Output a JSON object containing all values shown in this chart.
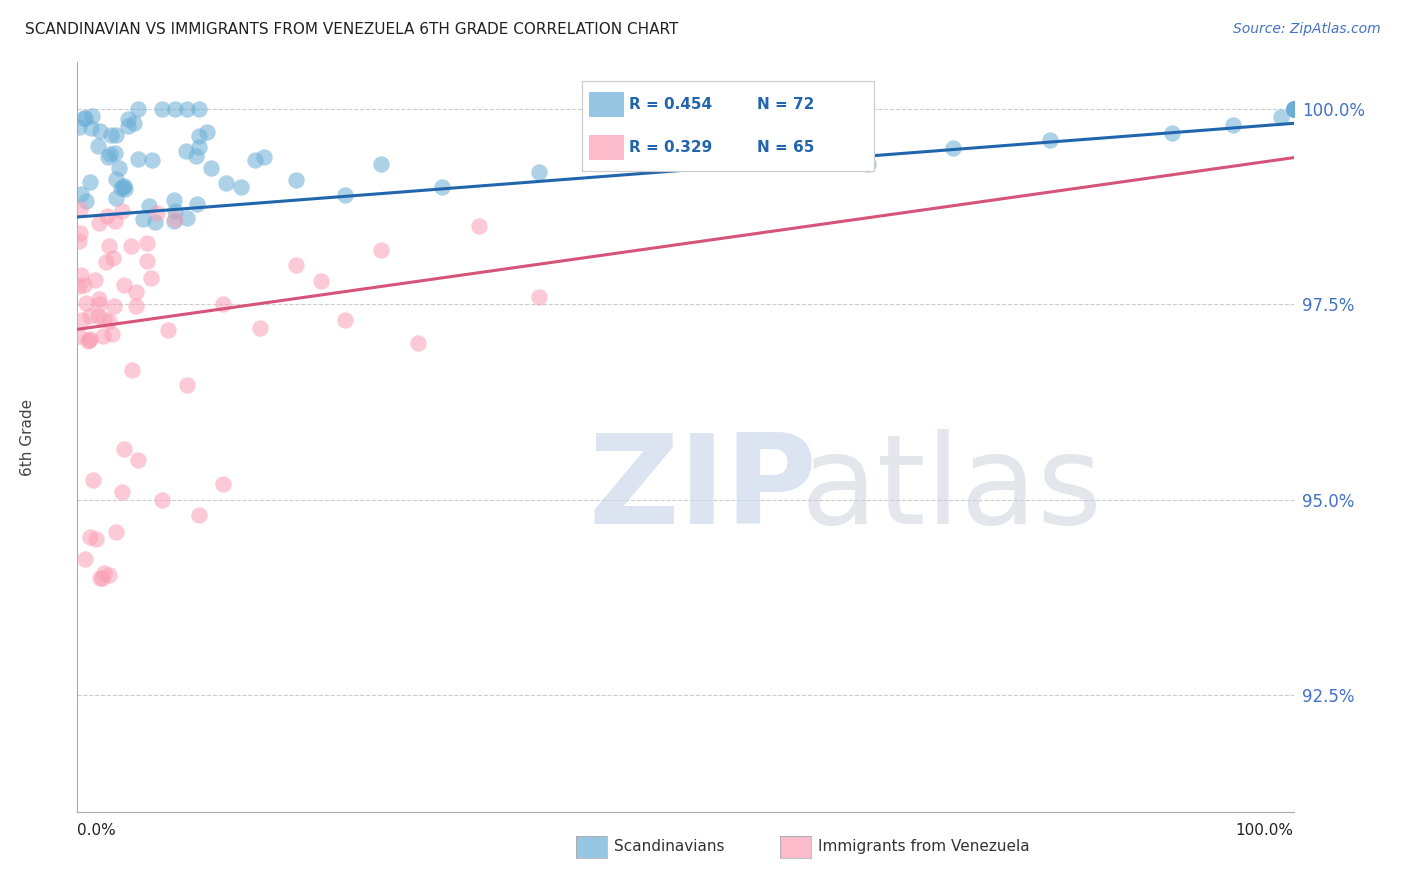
{
  "title": "SCANDINAVIAN VS IMMIGRANTS FROM VENEZUELA 6TH GRADE CORRELATION CHART",
  "source": "Source: ZipAtlas.com",
  "ylabel": "6th Grade",
  "xmin": 0.0,
  "xmax": 100.0,
  "ymin": 91.0,
  "ymax": 100.6,
  "yticks": [
    92.5,
    95.0,
    97.5,
    100.0
  ],
  "ytick_labels": [
    "92.5%",
    "95.0%",
    "97.5%",
    "100.0%"
  ],
  "blue_R": 0.454,
  "blue_N": 72,
  "pink_R": 0.329,
  "pink_N": 65,
  "blue_label": "Scandinavians",
  "pink_label": "Immigrants from Venezuela",
  "blue_color": "#6baed6",
  "pink_color": "#fa9fb5",
  "blue_line_color": "#2166ac",
  "pink_line_color": "#d6537a",
  "blue_line_y0": 98.62,
  "blue_line_y1": 99.82,
  "pink_line_y0": 97.18,
  "pink_line_y1": 99.38,
  "title_color": "#222222",
  "source_color": "#4472c4",
  "tick_label_color": "#4472c4",
  "grid_color": "#cccccc",
  "watermark_zip_color": "#ccd9ea",
  "watermark_atlas_color": "#c8cfd8"
}
